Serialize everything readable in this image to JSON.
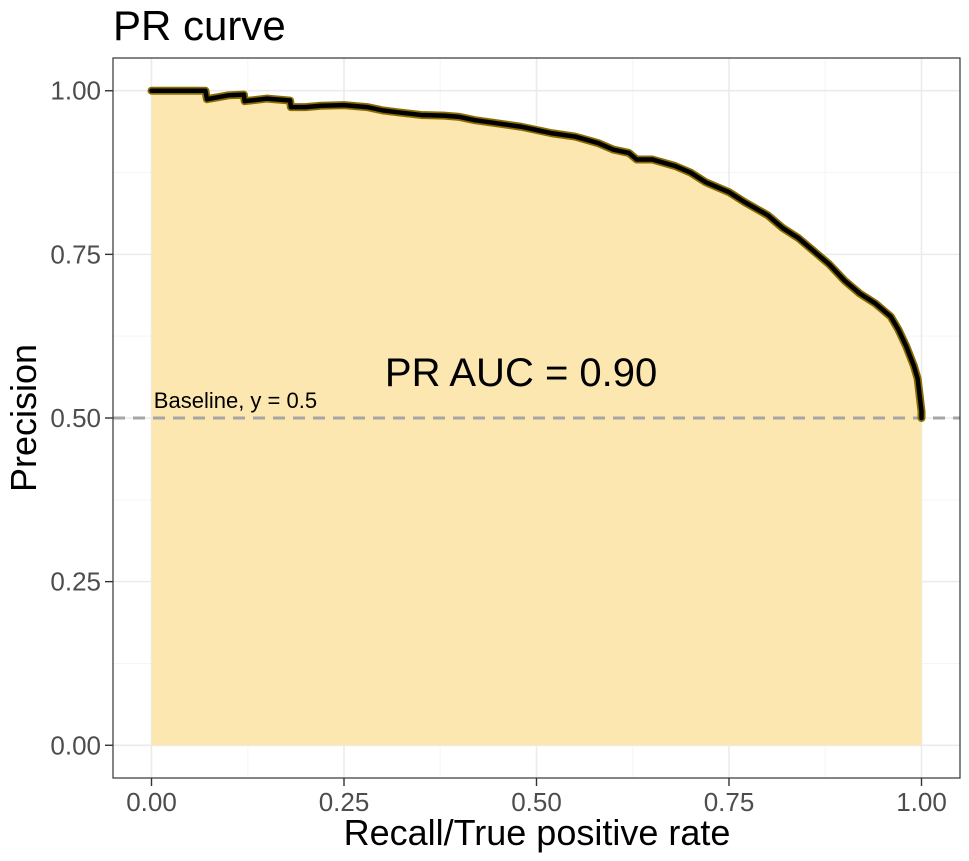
{
  "chart_data": {
    "type": "area",
    "title": "PR curve",
    "xlabel": "Recall/True positive rate",
    "ylabel": "Precision",
    "xlim": [
      -0.05,
      1.05
    ],
    "ylim": [
      -0.05,
      1.05
    ],
    "xticks": [
      0.0,
      0.25,
      0.5,
      0.75,
      1.0
    ],
    "yticks": [
      0.0,
      0.25,
      0.5,
      0.75,
      1.0
    ],
    "xtick_labels": [
      "0.00",
      "0.25",
      "0.50",
      "0.75",
      "1.00"
    ],
    "ytick_labels": [
      "0.00",
      "0.25",
      "0.50",
      "0.75",
      "1.00"
    ],
    "grid": true,
    "legend": "none",
    "colors": {
      "fill": "#fde7ae",
      "curve": "#000000",
      "curve_outline": "#8a6d00",
      "baseline": "#a6a6a6",
      "grid_major": "#ebebeb",
      "grid_minor": "#f5f5f5",
      "panel_border": "#333333"
    },
    "series": [
      {
        "x": [
          0.0,
          0.01,
          0.03,
          0.05,
          0.07,
          0.072,
          0.1,
          0.12,
          0.121,
          0.15,
          0.18,
          0.181,
          0.2,
          0.22,
          0.25,
          0.28,
          0.3,
          0.32,
          0.35,
          0.38,
          0.4,
          0.42,
          0.45,
          0.48,
          0.5,
          0.52,
          0.55,
          0.58,
          0.6,
          0.62,
          0.63,
          0.65,
          0.68,
          0.7,
          0.72,
          0.75,
          0.77,
          0.8,
          0.82,
          0.84,
          0.86,
          0.88,
          0.9,
          0.92,
          0.94,
          0.96,
          0.97,
          0.98,
          0.99,
          0.995,
          0.998,
          1.0,
          1.0
        ],
        "y": [
          1.0,
          1.0,
          1.0,
          1.0,
          1.0,
          0.987,
          0.993,
          0.994,
          0.984,
          0.988,
          0.985,
          0.975,
          0.975,
          0.977,
          0.978,
          0.975,
          0.97,
          0.967,
          0.963,
          0.962,
          0.96,
          0.955,
          0.95,
          0.945,
          0.94,
          0.935,
          0.93,
          0.92,
          0.91,
          0.905,
          0.895,
          0.895,
          0.885,
          0.875,
          0.86,
          0.845,
          0.83,
          0.81,
          0.79,
          0.775,
          0.755,
          0.735,
          0.71,
          0.69,
          0.675,
          0.655,
          0.635,
          0.61,
          0.58,
          0.56,
          0.53,
          0.51,
          0.5
        ]
      }
    ],
    "baseline": {
      "y": 0.5,
      "style": "dashed"
    },
    "annotations": [
      {
        "text": "PR AUC = 0.90",
        "x": 0.48,
        "y": 0.57,
        "size": "large",
        "anchor": "middle"
      },
      {
        "text": "Baseline, y = 0.5",
        "x": 0.003,
        "y": 0.515,
        "size": "small",
        "anchor": "start"
      }
    ]
  }
}
